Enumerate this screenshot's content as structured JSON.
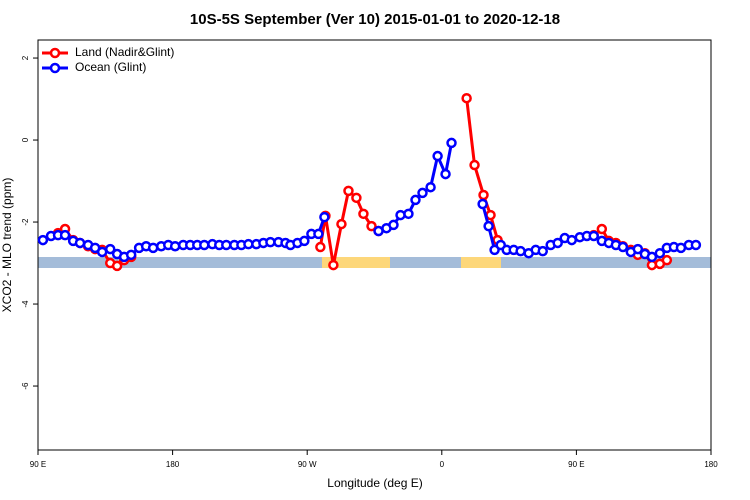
{
  "chart_data": {
    "type": "line",
    "title": "10S-5S September (Ver 10)   2015-01-01 to 2020-12-18",
    "xlabel": "Longitude (deg E)",
    "ylabel": "XCO2 - MLO trend (ppm)",
    "xlim": [
      90,
      540
    ],
    "xticks": [
      {
        "value": 90,
        "label": "90 E"
      },
      {
        "value": 180,
        "label": "180"
      },
      {
        "value": 270,
        "label": "90 W"
      },
      {
        "value": 360,
        "label": "0"
      },
      {
        "value": 450,
        "label": "90 E"
      },
      {
        "value": 540,
        "label": "180"
      }
    ],
    "ylim": [
      -7.56,
      2.44
    ],
    "yticks": [
      -6,
      -4,
      -2,
      0,
      2
    ],
    "legend": "top-left",
    "series": [
      {
        "name": "Land (Nadir&Glint)",
        "color": "#ff0000",
        "x": [
          103.4,
          108.1,
          113.5,
          118.1,
          123.5,
          128.2,
          132.9,
          138.3,
          142.9,
          147.6,
          152.3,
          200,
          278.8,
          282.2,
          287.5,
          292.9,
          297.6,
          302.9,
          307.6,
          313,
          317.7,
          340,
          376.6,
          381.9,
          387.9,
          392.6,
          397.3,
          430,
          461.6,
          467,
          471.7,
          476.4,
          481.1,
          486.4,
          491.1,
          495.8,
          500.5,
          505.8,
          510.5
        ],
        "values": [
          -2.27,
          -2.17,
          -2.44,
          -2.51,
          -2.59,
          -2.66,
          -2.68,
          -3.0,
          -3.07,
          -2.93,
          -2.85,
          null,
          -2.61,
          -1.85,
          -3.05,
          -2.05,
          -1.24,
          -1.41,
          -1.8,
          -2.1,
          -2.22,
          null,
          1.02,
          -0.61,
          -1.34,
          -1.83,
          -2.44,
          null,
          -2.32,
          -2.17,
          -2.46,
          -2.51,
          -2.59,
          -2.68,
          -2.8,
          -2.76,
          -3.05,
          -3.02,
          -2.93
        ]
      },
      {
        "name": "Ocean (Glint)",
        "color": "#0000ff",
        "x": [
          93.3,
          98.7,
          103.4,
          108.1,
          113.5,
          118.1,
          123.5,
          128.2,
          132.9,
          138.3,
          142.9,
          147.6,
          152.3,
          157.6,
          162.3,
          167,
          172.4,
          177.1,
          181.7,
          187.1,
          191.8,
          196.5,
          201.2,
          206.6,
          211.2,
          215.9,
          221.3,
          226,
          230.7,
          236,
          240.7,
          245.4,
          250.8,
          255.5,
          258.8,
          263.5,
          268.1,
          272.8,
          277.5,
          281.5,
          300,
          317.7,
          323,
          327.7,
          332.4,
          337.7,
          342.4,
          347.1,
          352.5,
          357.2,
          362.5,
          366.5,
          377,
          387.3,
          391.3,
          395.3,
          399.4,
          403.4,
          408.1,
          412.7,
          418.1,
          422.8,
          427.5,
          432.8,
          437.5,
          442.2,
          446.9,
          452.3,
          457,
          461.6,
          467,
          471.7,
          476.4,
          481.1,
          486.4,
          491.1,
          495.8,
          500.5,
          505.8,
          510.5,
          515.2,
          519.9,
          525.2,
          529.9
        ],
        "values": [
          -2.44,
          -2.34,
          -2.32,
          -2.32,
          -2.46,
          -2.51,
          -2.56,
          -2.63,
          -2.73,
          -2.66,
          -2.78,
          -2.85,
          -2.8,
          -2.63,
          -2.59,
          -2.63,
          -2.59,
          -2.56,
          -2.59,
          -2.56,
          -2.56,
          -2.56,
          -2.56,
          -2.54,
          -2.56,
          -2.56,
          -2.56,
          -2.56,
          -2.54,
          -2.54,
          -2.51,
          -2.49,
          -2.49,
          -2.51,
          -2.56,
          -2.51,
          -2.46,
          -2.29,
          -2.29,
          -1.88,
          null,
          -2.22,
          -2.15,
          -2.07,
          -1.83,
          -1.8,
          -1.46,
          -1.29,
          -1.15,
          -0.39,
          -0.83,
          -0.07,
          null,
          -1.56,
          -2.1,
          -2.68,
          -2.56,
          -2.68,
          -2.68,
          -2.71,
          -2.76,
          -2.68,
          -2.71,
          -2.56,
          -2.51,
          -2.39,
          -2.44,
          -2.37,
          -2.34,
          -2.34,
          -2.46,
          -2.51,
          -2.56,
          -2.61,
          -2.73,
          -2.66,
          -2.78,
          -2.85,
          -2.76,
          -2.63,
          -2.61,
          -2.63,
          -2.56,
          -2.56
        ]
      }
    ]
  }
}
